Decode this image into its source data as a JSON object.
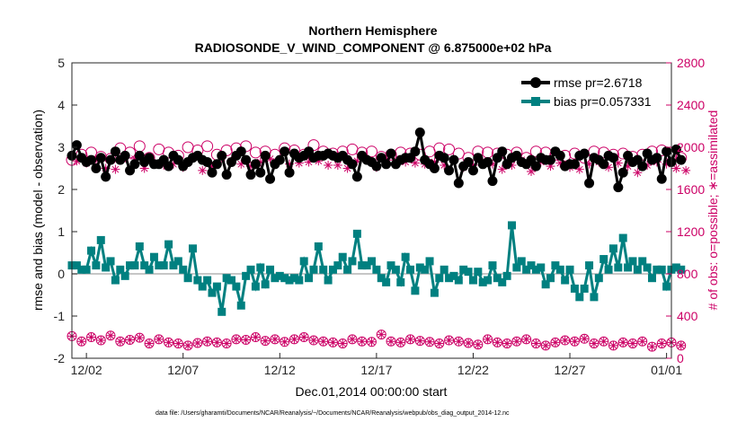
{
  "chart_data": {
    "type": "line",
    "title": "Northern Hemisphere",
    "subtitle": "RADIOSONDE_V_WIND_COMPONENT @ 6.875000e+02 hPa",
    "xlabel": "Dec.01,2014 00:00:00 start",
    "ylabel_left": "rmse and bias (model - observation)",
    "ylabel_right": "# of obs: o=possible; ∗=assimilated",
    "footer": "data file: /Users/gharamti/Documents/NCAR/Reanalysis/~/Documents/NCAR/Reanalysis/webpub/obs_diag_output_2014-12.nc",
    "x_tick_labels": [
      "12/02",
      "12/07",
      "12/12",
      "12/17",
      "12/22",
      "12/27",
      "01/01"
    ],
    "x_tick_days": [
      1,
      6,
      11,
      16,
      21,
      26,
      31
    ],
    "xlim_days": [
      0.25,
      31.25
    ],
    "ylim_left": [
      -2,
      5
    ],
    "yticks_left": [
      "-2",
      "-1",
      "0",
      "1",
      "2",
      "3",
      "4",
      "5"
    ],
    "ylim_right": [
      0,
      2800
    ],
    "yticks_right": [
      "0",
      "400",
      "800",
      "1200",
      "1600",
      "2000",
      "2400",
      "2800"
    ],
    "legend": {
      "position": "top-right",
      "rmse_label": "rmse pr=2.6718",
      "bias_label": "bias pr=0.057331"
    },
    "colors": {
      "rmse": "#000000",
      "bias": "#008080",
      "obs": "#cc0066",
      "zero_line": "#b4b4b4",
      "axis": "#262626"
    },
    "series": [
      {
        "name": "rmse",
        "x_start_day": 0.25,
        "x_step_day": 0.25,
        "values": [
          2.8,
          3.05,
          2.75,
          2.65,
          2.7,
          2.5,
          2.75,
          2.3,
          2.7,
          2.9,
          2.7,
          2.8,
          2.45,
          2.6,
          2.8,
          2.65,
          2.75,
          2.6,
          2.6,
          2.7,
          2.55,
          2.8,
          2.7,
          2.55,
          2.65,
          2.75,
          2.8,
          2.7,
          2.65,
          2.4,
          2.6,
          2.8,
          2.35,
          2.65,
          2.8,
          2.9,
          2.7,
          2.35,
          2.6,
          2.4,
          2.8,
          2.25,
          2.6,
          2.7,
          2.9,
          2.4,
          2.85,
          2.75,
          2.8,
          2.9,
          2.75,
          2.8,
          2.8,
          2.85,
          2.8,
          2.75,
          2.8,
          2.7,
          2.6,
          2.3,
          2.8,
          2.7,
          2.65,
          2.55,
          2.75,
          2.6,
          2.85,
          2.6,
          2.7,
          2.75,
          2.75,
          2.9,
          3.35,
          2.7,
          2.6,
          2.5,
          2.8,
          2.75,
          2.45,
          2.7,
          2.15,
          2.55,
          2.65,
          2.45,
          2.75,
          2.6,
          2.65,
          2.2,
          2.75,
          2.9,
          2.6,
          2.75,
          2.8,
          2.65,
          2.6,
          2.7,
          2.55,
          2.75,
          2.7,
          2.7,
          2.9,
          2.8,
          2.55,
          2.6,
          2.6,
          2.8,
          2.85,
          2.15,
          2.75,
          2.7,
          2.6,
          2.8,
          2.75,
          2.05,
          2.4,
          2.8,
          2.65,
          2.7,
          2.55,
          2.85,
          2.7,
          2.75,
          2.25,
          2.9,
          2.65,
          2.95,
          2.7
        ]
      },
      {
        "name": "bias",
        "x_start_day": 0.25,
        "x_step_day": 0.25,
        "values": [
          0.2,
          0.2,
          0.1,
          0.1,
          0.55,
          0.2,
          0.8,
          0.15,
          0.3,
          -0.15,
          0.1,
          -0.05,
          0.2,
          0.2,
          0.65,
          0.2,
          0.1,
          0.4,
          0.2,
          0.2,
          0.7,
          0.2,
          0.3,
          0.1,
          -0.1,
          0.6,
          -0.15,
          -0.3,
          -0.15,
          -0.45,
          -0.3,
          -0.9,
          -0.1,
          -0.15,
          -0.3,
          -0.75,
          -0.05,
          0.1,
          -0.3,
          0.15,
          -0.25,
          0.1,
          -0.1,
          -0.05,
          -0.1,
          -0.15,
          -0.1,
          -0.15,
          0.3,
          -0.1,
          0.1,
          0.65,
          0.1,
          -0.15,
          0.1,
          0.2,
          0.4,
          0.1,
          0.3,
          0.95,
          0.2,
          0.2,
          0.3,
          0.1,
          -0.1,
          -0.2,
          0.2,
          0.1,
          -0.2,
          0.4,
          0.1,
          -0.4,
          0.15,
          0.1,
          0.3,
          -0.45,
          -0.1,
          0.1,
          -0.1,
          -0.05,
          -0.15,
          0.1,
          0.05,
          -0.15,
          0.05,
          -0.2,
          -0.15,
          0.2,
          -0.1,
          -0.2,
          -0.05,
          1.15,
          0.15,
          0.3,
          0.1,
          0.2,
          0.1,
          0.15,
          -0.25,
          -0.1,
          0.2,
          0.1,
          -0.15,
          0.1,
          -0.35,
          -0.55,
          -0.35,
          0.2,
          -0.55,
          -0.1,
          0.35,
          0.1,
          0.6,
          0.15,
          0.85,
          0.15,
          0.3,
          0.1,
          0.3,
          0.15,
          -0.1,
          0.1,
          0.1,
          -0.3,
          0.1,
          0.15,
          0.1
        ]
      },
      {
        "name": "obs_possible",
        "axis": "right",
        "x_start_day": 0.25,
        "x_step_day": 0.5,
        "values": [
          1880,
          1930,
          1950,
          1910,
          1890,
          1990,
          1950,
          2010,
          1900,
          1980,
          1950,
          1920,
          2000,
          1970,
          2010,
          1930,
          1970,
          1990,
          2010,
          1950,
          1960,
          1930,
          1990,
          1970,
          1930,
          2020,
          1960,
          1940,
          1960,
          1980,
          1950,
          1960,
          1910,
          1930,
          1950,
          1940,
          1930,
          1960,
          1990,
          1980,
          1940,
          1900,
          1960,
          1950,
          1940,
          1930,
          1950,
          1900,
          1960,
          1950,
          1930,
          1920,
          1940,
          1900,
          1960,
          1950,
          1930,
          1940,
          1910,
          1930,
          1960,
          1970,
          1920,
          1900
        ]
      },
      {
        "name": "obs_assimilated",
        "axis": "right",
        "x_start_day": 0.5,
        "x_step_day": 0.5,
        "values": [
          1870,
          1850,
          1880,
          1800,
          1790,
          1900,
          1890,
          1800,
          1850,
          1830,
          1840,
          1810,
          1900,
          1780,
          1820,
          1900,
          1870,
          1840,
          1820,
          1860,
          1890,
          1880,
          1840,
          1850,
          1860,
          1870,
          1830,
          1830,
          1800,
          1870,
          1880,
          1810,
          1880,
          1850,
          1860,
          1850,
          1840,
          1860,
          1830,
          1880,
          1810,
          1830,
          1860,
          1840,
          1790,
          1830,
          1880,
          1770,
          1860,
          1820,
          1850,
          1810,
          1790,
          1840,
          1860,
          1810,
          1850,
          1820,
          1760,
          1830,
          1860,
          1840,
          1800,
          1780
        ]
      },
      {
        "name": "obs_low_possible",
        "axis": "right",
        "x_start_day": 0.25,
        "x_step_day": 0.5,
        "values": [
          210,
          160,
          200,
          170,
          215,
          160,
          175,
          195,
          140,
          180,
          150,
          140,
          120,
          145,
          160,
          150,
          140,
          180,
          175,
          200,
          165,
          180,
          155,
          180,
          200,
          170,
          160,
          150,
          140,
          180,
          160,
          155,
          225,
          160,
          150,
          180,
          165,
          155,
          140,
          170,
          160,
          145,
          130,
          180,
          150,
          140,
          160,
          180,
          140,
          120,
          150,
          170,
          160,
          185,
          140,
          160,
          120,
          150,
          140,
          160,
          110,
          140,
          150,
          120
        ]
      }
    ]
  }
}
